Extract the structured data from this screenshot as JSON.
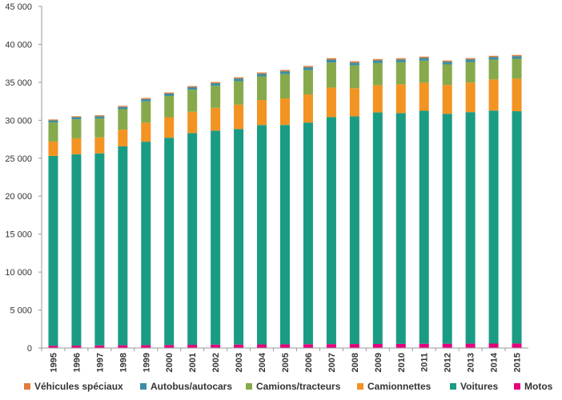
{
  "chart_data": {
    "type": "bar",
    "stacked": true,
    "categories": [
      "1995",
      "1996",
      "1997",
      "1998",
      "1999",
      "2000",
      "2001",
      "2002",
      "2003",
      "2004",
      "2005",
      "2006",
      "2007",
      "2008",
      "2009",
      "2010",
      "2011",
      "2012",
      "2013",
      "2014",
      "2015"
    ],
    "ylim": [
      0,
      45000
    ],
    "yticks": [
      "0",
      "5 000",
      "10 000",
      "15 000",
      "20 000",
      "25 000",
      "30 000",
      "35 000",
      "40 000",
      "45 000"
    ],
    "grid": false,
    "legend_position": "bottom",
    "series": [
      {
        "name": "Motos",
        "color": "#e6007e",
        "values": [
          300,
          320,
          340,
          360,
          380,
          400,
          420,
          440,
          450,
          470,
          480,
          500,
          510,
          520,
          530,
          540,
          550,
          560,
          570,
          580,
          590
        ]
      },
      {
        "name": "Voitures",
        "color": "#1a9c84",
        "values": [
          25000,
          25200,
          25300,
          26200,
          26800,
          27300,
          27900,
          28200,
          28400,
          28900,
          28900,
          29200,
          29900,
          30000,
          30500,
          30400,
          30700,
          30300,
          30500,
          30700,
          30600
        ]
      },
      {
        "name": "Camionnettes",
        "color": "#f39322",
        "values": [
          1900,
          2100,
          2100,
          2200,
          2500,
          2700,
          2800,
          3000,
          3200,
          3300,
          3500,
          3700,
          3900,
          3700,
          3600,
          3800,
          3700,
          3800,
          3900,
          4100,
          4300
        ]
      },
      {
        "name": "Camions/tracteurs",
        "color": "#86aa4b",
        "values": [
          2500,
          2500,
          2500,
          2700,
          2800,
          2800,
          2900,
          2900,
          3100,
          3100,
          3200,
          3200,
          3300,
          3000,
          2900,
          2900,
          2900,
          2700,
          2700,
          2600,
          2600
        ]
      },
      {
        "name": "Autobus/autocars",
        "color": "#3d8ea1",
        "values": [
          280,
          280,
          290,
          300,
          310,
          320,
          330,
          340,
          350,
          360,
          370,
          380,
          390,
          380,
          370,
          370,
          370,
          360,
          360,
          360,
          360
        ]
      },
      {
        "name": "Véhicules spéciaux",
        "color": "#e07b39",
        "values": [
          120,
          120,
          130,
          130,
          140,
          140,
          150,
          150,
          160,
          160,
          170,
          170,
          180,
          170,
          160,
          160,
          160,
          150,
          150,
          150,
          150
        ]
      }
    ]
  },
  "legend_order": [
    "Véhicules spéciaux",
    "Autobus/autocars",
    "Camions/tracteurs",
    "Camionnettes",
    "Voitures",
    "Motos"
  ]
}
